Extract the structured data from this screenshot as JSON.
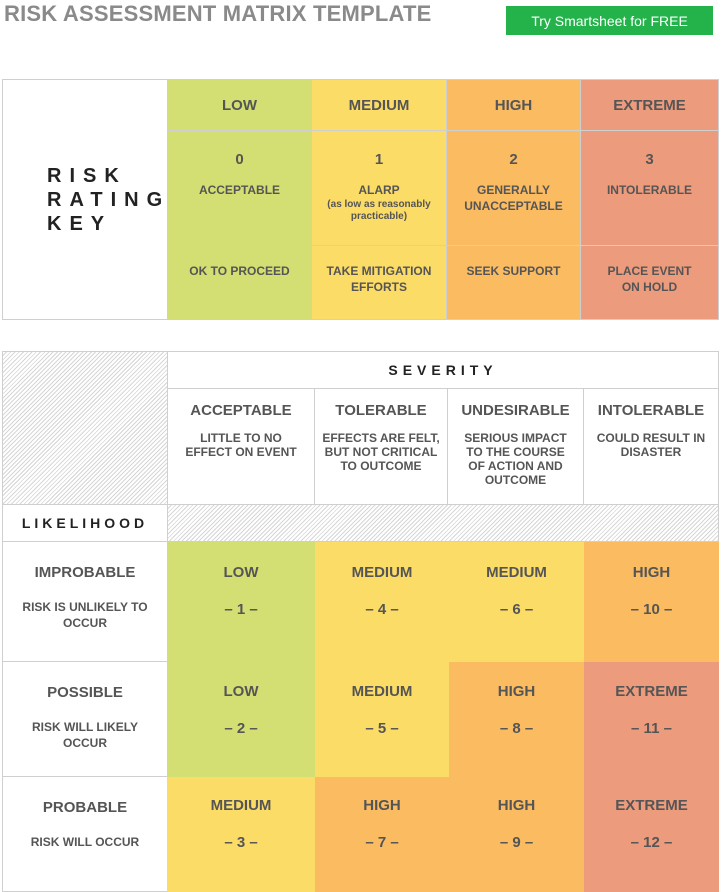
{
  "title": "RISK ASSESSMENT MATRIX TEMPLATE",
  "cta_label": "Try Smartsheet for FREE",
  "key": {
    "heading_lines": [
      "RISK",
      "RATING",
      "KEY"
    ],
    "columns": [
      {
        "level": "LOW",
        "number": "0",
        "description": "ACCEPTABLE",
        "note": "",
        "action": "OK TO PROCEED"
      },
      {
        "level": "MEDIUM",
        "number": "1",
        "description": "ALARP",
        "note": "(as low as reasonably practicable)",
        "action": "TAKE MITIGATION EFFORTS"
      },
      {
        "level": "HIGH",
        "number": "2",
        "description": "GENERALLY UNACCEPTABLE",
        "note": "",
        "action": "SEEK SUPPORT"
      },
      {
        "level": "EXTREME",
        "number": "3",
        "description": "INTOLERABLE",
        "note": "",
        "action": "PLACE EVENT ON HOLD"
      }
    ],
    "colors": {
      "low": "#d3df72",
      "medium": "#fbdc67",
      "high": "#fbbb61",
      "extreme": "#ec9b7c"
    }
  },
  "matrix": {
    "severity_label": "SEVERITY",
    "likelihood_label": "LIKELIHOOD",
    "severity": [
      {
        "name": "ACCEPTABLE",
        "desc": "LITTLE TO NO EFFECT ON EVENT"
      },
      {
        "name": "TOLERABLE",
        "desc": "EFFECTS ARE FELT, BUT NOT CRITICAL TO OUTCOME"
      },
      {
        "name": "UNDESIRABLE",
        "desc": "SERIOUS IMPACT TO THE COURSE OF ACTION AND OUTCOME"
      },
      {
        "name": "INTOLERABLE",
        "desc": "COULD RESULT IN DISASTER"
      }
    ],
    "likelihood": [
      {
        "name": "IMPROBABLE",
        "desc": "RISK IS UNLIKELY TO OCCUR"
      },
      {
        "name": "POSSIBLE",
        "desc": "RISK WILL LIKELY OCCUR"
      },
      {
        "name": "PROBABLE",
        "desc": "RISK WILL OCCUR"
      }
    ],
    "cells": [
      [
        {
          "level": "LOW",
          "num": "– 1 –"
        },
        {
          "level": "MEDIUM",
          "num": "– 4 –"
        },
        {
          "level": "MEDIUM",
          "num": "– 6 –"
        },
        {
          "level": "HIGH",
          "num": "– 10 –"
        }
      ],
      [
        {
          "level": "LOW",
          "num": "– 2 –"
        },
        {
          "level": "MEDIUM",
          "num": "– 5 –"
        },
        {
          "level": "HIGH",
          "num": "– 8 –"
        },
        {
          "level": "EXTREME",
          "num": "– 11 –"
        }
      ],
      [
        {
          "level": "MEDIUM",
          "num": "– 3 –"
        },
        {
          "level": "HIGH",
          "num": "– 7 –"
        },
        {
          "level": "HIGH",
          "num": "– 9 –"
        },
        {
          "level": "EXTREME",
          "num": "– 12 –"
        }
      ]
    ]
  }
}
